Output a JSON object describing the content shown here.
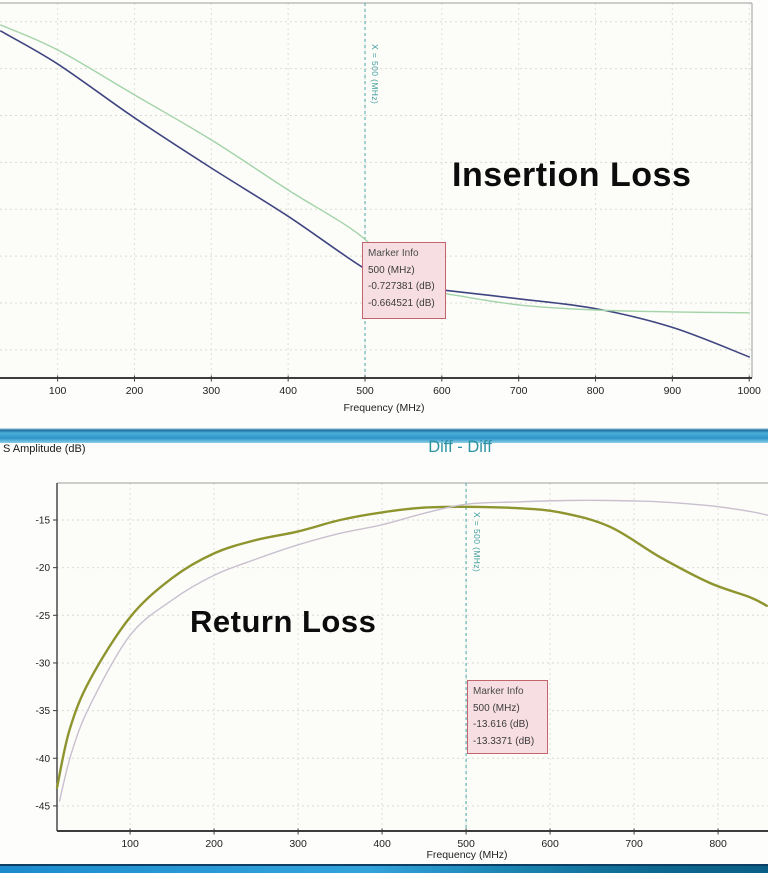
{
  "header": {
    "ylabel_left": "S Amplitude (dB)",
    "plot_title": "Diff - Diff"
  },
  "colors": {
    "marker_box_bg": "#f7dee3",
    "marker_box_border": "#c3646e",
    "marker_line_teal": "#49a6a6",
    "plot_title_teal": "#2f93a3",
    "divider_blue": "#2e95c8",
    "taskbar_blue": "#1b86b4",
    "trace_dark_blue": "#3f4580",
    "trace_light_green": "#a3d3a8",
    "trace_olive": "#8e942e",
    "trace_lavender": "#c9c0cf"
  },
  "chart_data": [
    {
      "type": "line",
      "annotation": "Insertion Loss",
      "xlabel": "Frequency (MHz)",
      "ylabel": "",
      "grid": true,
      "legend": "none",
      "xlim": [
        25,
        1005
      ],
      "ylim": [
        -0.96,
        -0.16
      ],
      "xticks": [
        100,
        200,
        300,
        400,
        500,
        600,
        700,
        800,
        900,
        1000
      ],
      "ygrid": [
        -0.2,
        -0.3,
        -0.4,
        -0.5,
        -0.6,
        -0.7,
        -0.8,
        -0.9
      ],
      "marker": {
        "x": 500,
        "label": "X = 500 (MHz)",
        "info_title": "Marker Info",
        "info_lines": [
          "500 (MHz)",
          "-0.727381 (dB)",
          "-0.664521 (dB)"
        ]
      },
      "series": [
        {
          "name": "trace-1-dark-blue",
          "color": "#3f4580",
          "x": [
            26,
            100,
            200,
            300,
            400,
            500,
            550,
            600,
            700,
            800,
            900,
            1000
          ],
          "y": [
            -0.22,
            -0.29,
            -0.405,
            -0.512,
            -0.615,
            -0.727,
            -0.762,
            -0.772,
            -0.791,
            -0.812,
            -0.852,
            -0.915
          ]
        },
        {
          "name": "trace-2-light-green",
          "color": "#a3d3a8",
          "x": [
            26,
            100,
            200,
            300,
            400,
            500,
            550,
            600,
            700,
            800,
            900,
            1000
          ],
          "y": [
            -0.207,
            -0.26,
            -0.356,
            -0.452,
            -0.559,
            -0.664,
            -0.77,
            -0.779,
            -0.804,
            -0.815,
            -0.819,
            -0.821
          ]
        }
      ]
    },
    {
      "type": "line",
      "title": "Diff - Diff",
      "annotation": "Return Loss",
      "xlabel": "Frequency (MHz)",
      "ylabel": "S Amplitude (dB)",
      "grid": true,
      "legend": "none",
      "xlim": [
        13,
        859
      ],
      "ylim": [
        -47.6,
        -11.1
      ],
      "xticks": [
        100,
        200,
        300,
        400,
        500,
        600,
        700,
        800
      ],
      "yticks": [
        -15,
        -20,
        -25,
        -30,
        -35,
        -40,
        -45
      ],
      "marker": {
        "x": 500,
        "label": "X = 500 (MHz)",
        "info_title": "Marker Info",
        "info_lines": [
          "500 (MHz)",
          "-13.616 (dB)",
          "-13.3371 (dB)"
        ]
      },
      "series": [
        {
          "name": "trace-1-olive",
          "color": "#8e942e",
          "x": [
            13,
            28,
            52,
            100,
            150,
            200,
            250,
            300,
            350,
            400,
            450,
            500,
            560,
            612,
            671,
            731,
            790,
            838,
            858
          ],
          "y": [
            -43.1,
            -37.0,
            -31.8,
            -25.2,
            -21.1,
            -18.5,
            -17.1,
            -16.2,
            -15.0,
            -14.2,
            -13.7,
            -13.616,
            -13.75,
            -14.2,
            -15.7,
            -18.9,
            -21.6,
            -23.1,
            -24.0
          ]
        },
        {
          "name": "trace-2-lavender",
          "color": "#c9c0cf",
          "x": [
            16,
            30,
            52,
            100,
            150,
            200,
            250,
            300,
            350,
            400,
            450,
            500,
            560,
            620,
            671,
            731,
            790,
            838,
            859
          ],
          "y": [
            -44.5,
            -39.5,
            -34.5,
            -27.1,
            -23.4,
            -20.8,
            -19.1,
            -17.6,
            -16.4,
            -15.5,
            -14.3,
            -13.337,
            -13.1,
            -12.95,
            -12.95,
            -13.1,
            -13.5,
            -14.1,
            -14.5
          ]
        }
      ]
    }
  ]
}
